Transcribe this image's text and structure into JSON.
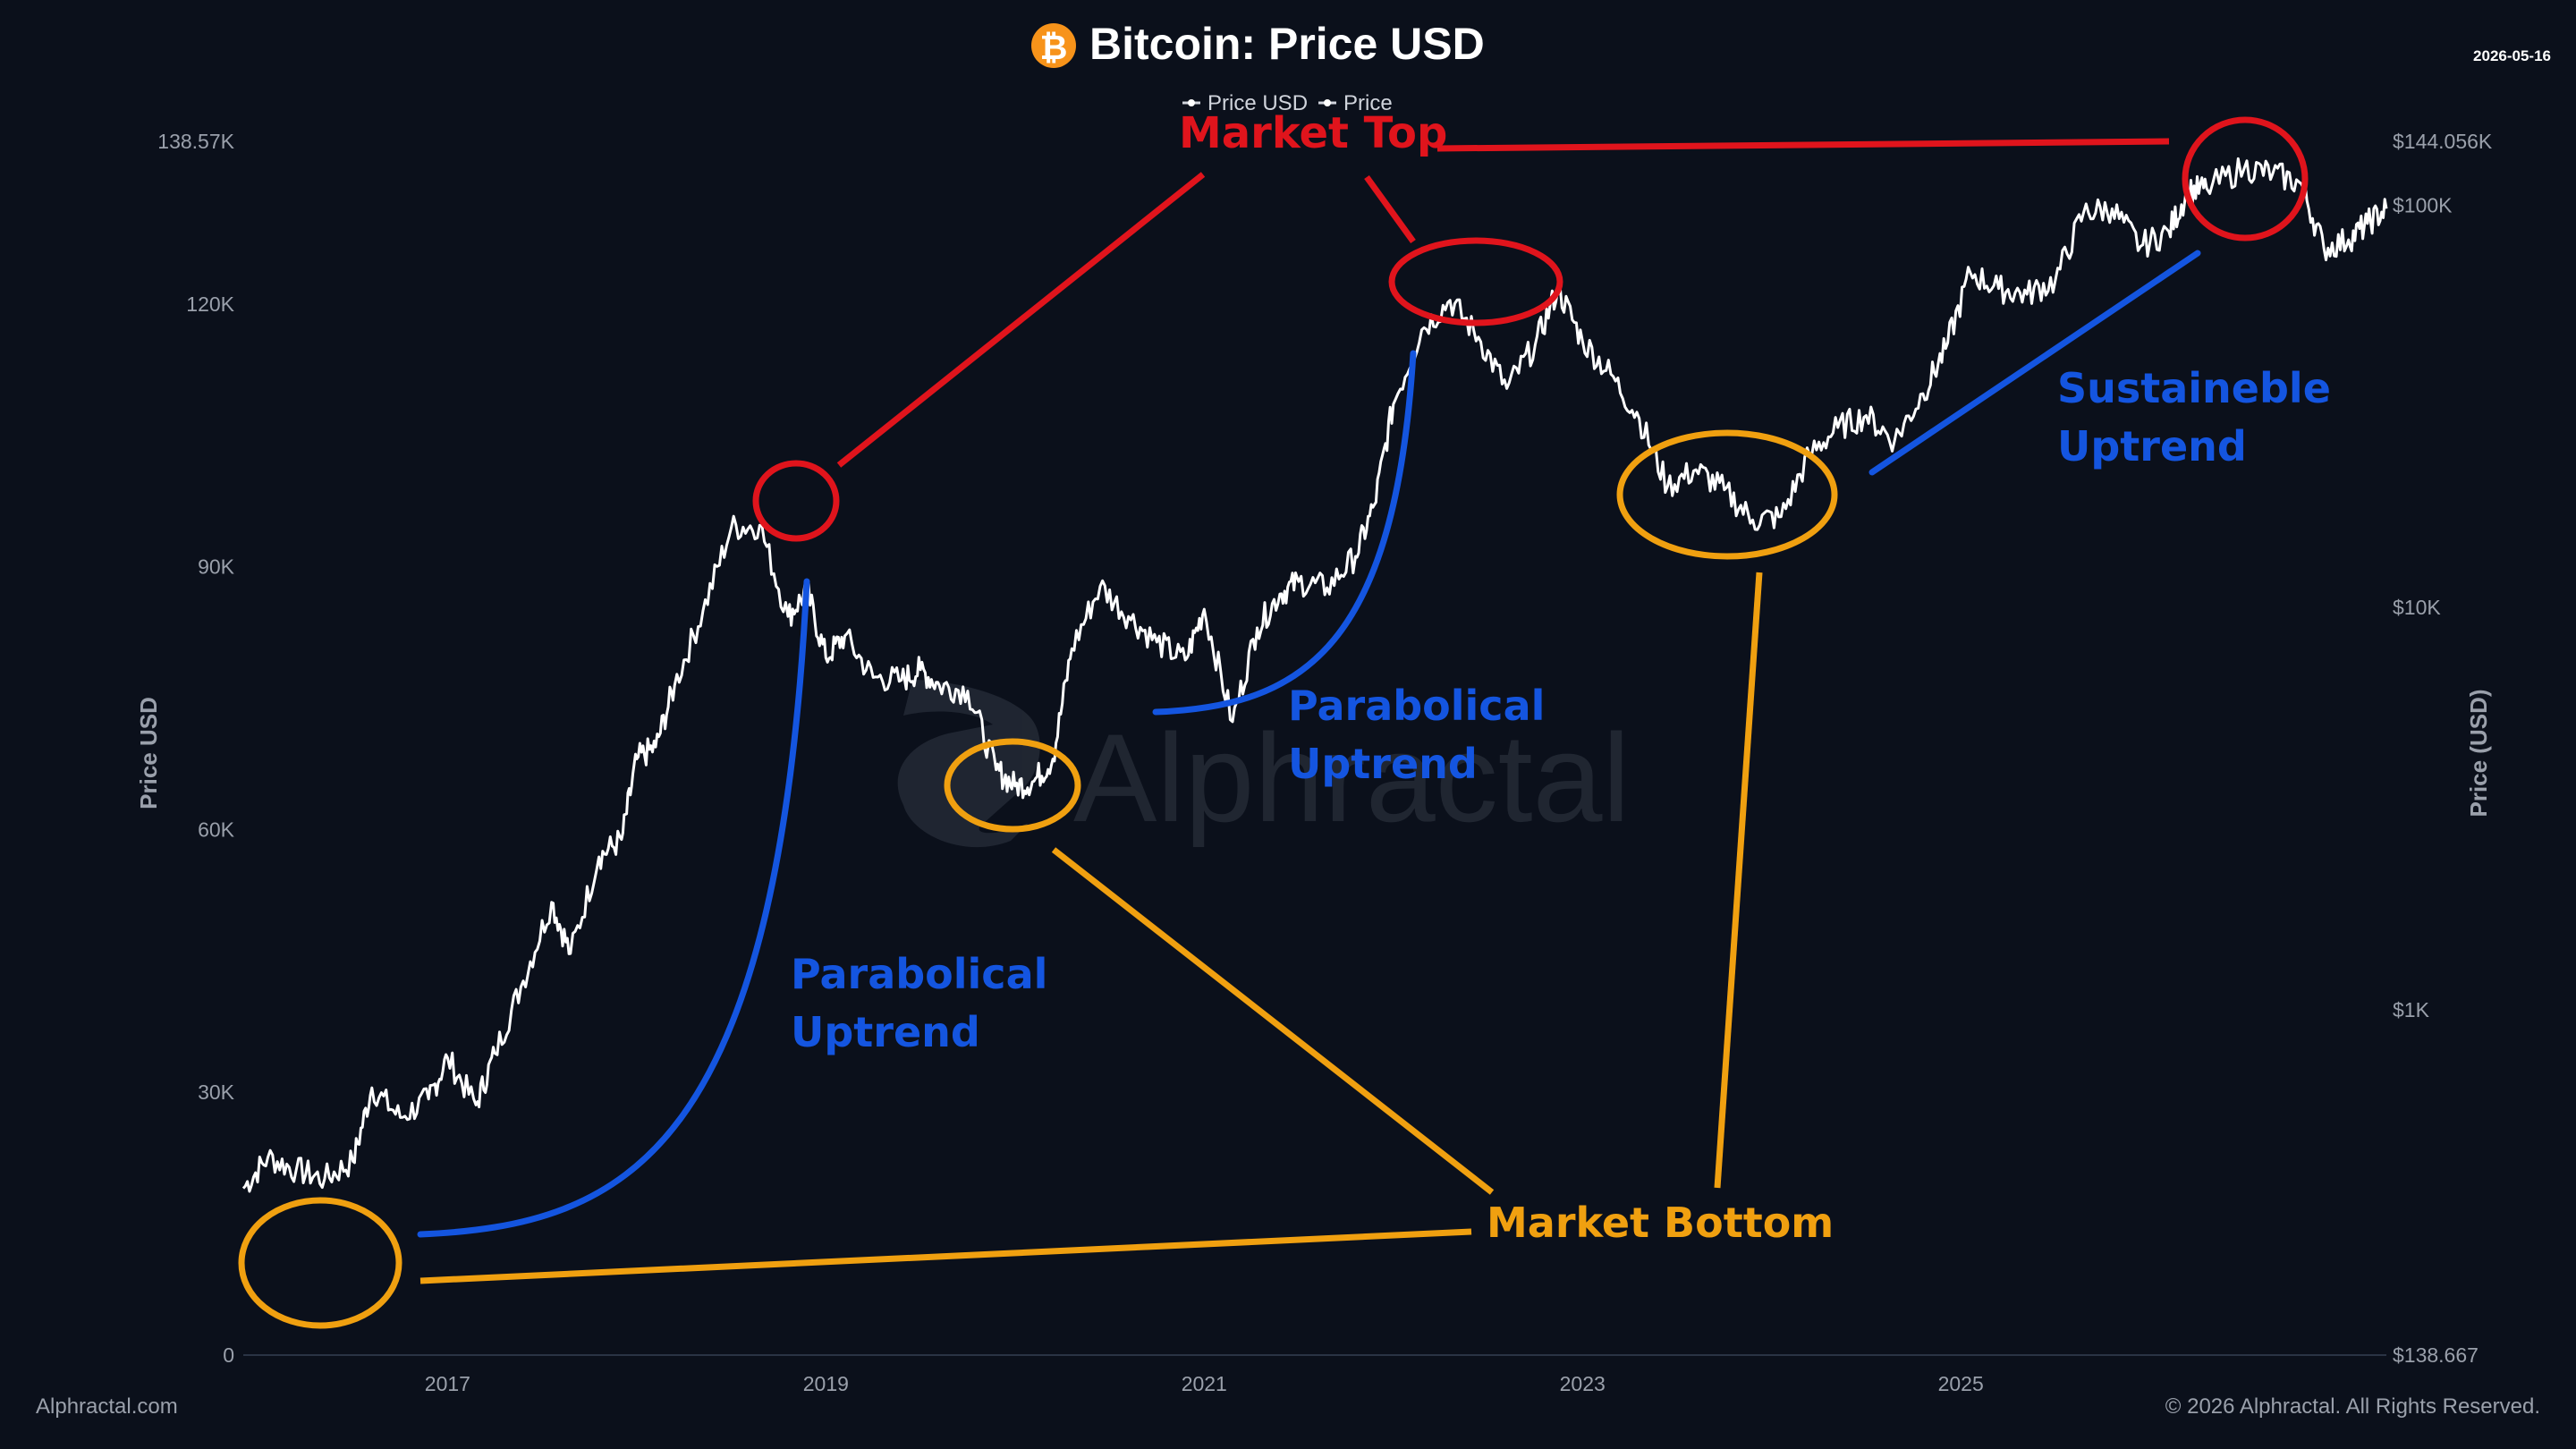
{
  "header": {
    "title": "Bitcoin: Price USD",
    "date": "2026-05-16",
    "logo_icon": "bitcoin-icon"
  },
  "footer": {
    "site": "Alphractal.com",
    "copyright": "© 2026 Alphractal. All Rights Reserved."
  },
  "watermark": {
    "text": "Alphractal"
  },
  "legend": {
    "placement": "top-center",
    "items": [
      "Price USD",
      "Price"
    ]
  },
  "colors": {
    "background": "#0b101b",
    "price_line": "#ffffff",
    "market_top": "#e0141c",
    "parabolic_uptrend": "#1455e0",
    "market_bottom": "#f0a010",
    "bitcoin_orange": "#f7931a"
  },
  "annotations": {
    "market_top": "Market Top",
    "market_bottom": "Market Bottom",
    "parabolic_1_line1": "Parabolical",
    "parabolic_1_line2": "Uptrend",
    "parabolic_2_line1": "Parabolical",
    "parabolic_2_line2": "Uptrend",
    "sustainable_line1": "Sustaineble",
    "sustainable_line2": "Uptrend"
  },
  "chart_data": {
    "type": "line",
    "title": "Bitcoin: Price USD",
    "left_axis_title": "Price USD",
    "right_axis_title": "Price (USD)",
    "left_ticks": [
      "0",
      "30K",
      "60K",
      "90K",
      "120K",
      "138.57K"
    ],
    "left_tick_values": [
      0,
      30000,
      60000,
      90000,
      120000,
      138570
    ],
    "right_ticks": [
      "$138.667",
      "$1K",
      "$10K",
      "$100K",
      "$144.056K"
    ],
    "right_tick_values": [
      138.667,
      1000,
      10000,
      100000,
      144056
    ],
    "right_scale": "log",
    "x_ticks": [
      "2017",
      "2019",
      "2021",
      "2023",
      "2025"
    ],
    "x_tick_values": [
      2017,
      2019,
      2021,
      2023,
      2025
    ],
    "xlim": [
      2015.92,
      2027.25
    ],
    "ylim": [
      0,
      138570
    ],
    "series": [
      {
        "name": "Price",
        "scale": "log (right axis)",
        "x": [
          2015.92,
          2016.05,
          2016.2,
          2016.35,
          2016.5,
          2016.6,
          2016.75,
          2016.9,
          2017.0,
          2017.15,
          2017.25,
          2017.4,
          2017.55,
          2017.65,
          2017.8,
          2017.92,
          2018.0,
          2018.1,
          2018.2,
          2018.35,
          2018.5,
          2018.65,
          2018.8,
          2018.9,
          2019.0,
          2019.1,
          2019.25,
          2019.4,
          2019.5,
          2019.6,
          2019.75,
          2019.9,
          2020.0,
          2020.1,
          2020.2,
          2020.3,
          2020.45,
          2020.6,
          2020.75,
          2020.9,
          2021.0,
          2021.15,
          2021.28,
          2021.4,
          2021.5,
          2021.65,
          2021.8,
          2021.9,
          2022.0,
          2022.15,
          2022.3,
          2022.45,
          2022.6,
          2022.75,
          2022.87,
          2023.0,
          2023.15,
          2023.3,
          2023.45,
          2023.6,
          2023.75,
          2023.9,
          2024.05,
          2024.2,
          2024.35,
          2024.5,
          2024.65,
          2024.8,
          2024.92,
          2025.05,
          2025.2,
          2025.35,
          2025.5,
          2025.65,
          2025.8,
          2025.95,
          2026.1,
          2026.2,
          2026.3,
          2026.5,
          2026.65,
          2026.8,
          2026.92,
          2027.05,
          2027.15,
          2027.25
        ],
        "values": [
          360,
          430,
          400,
          380,
          420,
          640,
          540,
          600,
          760,
          580,
          780,
          1180,
          1850,
          1380,
          2400,
          2650,
          4200,
          4500,
          6400,
          9800,
          15800,
          16000,
          9500,
          11000,
          7500,
          8500,
          6700,
          6600,
          7000,
          6400,
          6200,
          3950,
          3600,
          3700,
          4200,
          7900,
          11300,
          9500,
          8200,
          7400,
          9900,
          5200,
          8900,
          10800,
          11600,
          11200,
          13400,
          18000,
          32000,
          49000,
          58000,
          47000,
          35000,
          45000,
          62000,
          46000,
          38000,
          29500,
          20000,
          22000,
          19600,
          16500,
          16800,
          24000,
          28000,
          30000,
          26000,
          34000,
          44000,
          68000,
          62000,
          60000,
          65000,
          96000,
          98000,
          79000,
          86000,
          108000,
          110000,
          124000,
          120000,
          113000,
          78000,
          82000,
          90000,
          98000
        ]
      }
    ],
    "annotation_labels": [
      "Market Top",
      "Market Bottom",
      "Parabolical Uptrend",
      "Parabolical Uptrend",
      "Sustaineble Uptrend"
    ]
  }
}
